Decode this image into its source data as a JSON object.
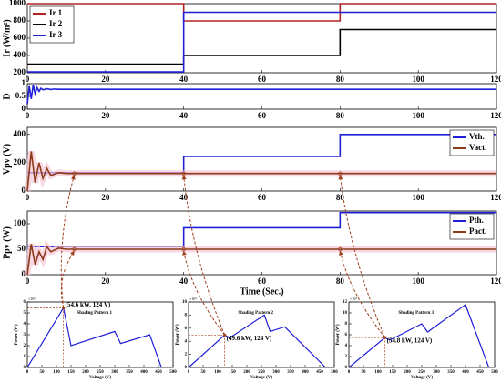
{
  "chart_data": [
    {
      "type": "line",
      "ylabel": "Ir (W/m²)",
      "xlim": [
        0,
        120
      ],
      "xticks": [
        0,
        20,
        40,
        60,
        80,
        100,
        120
      ],
      "ylim": [
        200,
        1000
      ],
      "yticks": [
        200,
        400,
        600,
        800,
        1000
      ],
      "legend": "upper left",
      "series": [
        {
          "name": "Ir 1",
          "color": "#b22222",
          "x": [
            0,
            40,
            40,
            80,
            80,
            120
          ],
          "values": [
            1000,
            1000,
            800,
            800,
            1000,
            1000
          ]
        },
        {
          "name": "Ir 2",
          "color": "#000000",
          "x": [
            0,
            40,
            40,
            80,
            80,
            120
          ],
          "values": [
            300,
            300,
            400,
            400,
            700,
            700
          ]
        },
        {
          "name": "Ir 3",
          "color": "#1f1fd6",
          "x": [
            0,
            40,
            40,
            80,
            80,
            120
          ],
          "values": [
            210,
            210,
            900,
            900,
            900,
            900
          ]
        }
      ]
    },
    {
      "type": "line",
      "ylabel": "D",
      "xlim": [
        0,
        120
      ],
      "xticks": [
        0,
        20,
        40,
        60,
        80,
        100,
        120
      ],
      "ylim": [
        0,
        1
      ],
      "yticks": [
        0,
        0.5,
        1
      ],
      "series": [
        {
          "color": "#1f1fd6",
          "x": [
            0,
            0.5,
            1,
            1.5,
            2,
            2.5,
            3,
            3.5,
            4,
            5,
            6,
            7,
            8,
            120
          ],
          "values": [
            0.2,
            0.9,
            0.4,
            0.95,
            0.6,
            0.85,
            0.7,
            0.82,
            0.76,
            0.8,
            0.77,
            0.79,
            0.78,
            0.78
          ]
        }
      ]
    },
    {
      "type": "line",
      "ylabel": "Vpv (V)",
      "xlim": [
        0,
        120
      ],
      "xticks": [
        0,
        20,
        40,
        60,
        80,
        100,
        120
      ],
      "ylim": [
        0,
        450
      ],
      "yticks": [
        0,
        200,
        400
      ],
      "legend": "upper right",
      "series": [
        {
          "name": "Vth.",
          "color": "#1f1fd6",
          "x": [
            0,
            40,
            40,
            80,
            80,
            120
          ],
          "values": [
            130,
            130,
            245,
            245,
            400,
            400
          ]
        },
        {
          "name": "Vact.",
          "color": "#8b3a1a",
          "x": [
            0,
            1,
            2,
            3,
            4,
            5,
            6,
            8,
            10,
            120
          ],
          "values": [
            0,
            280,
            60,
            200,
            90,
            160,
            110,
            130,
            124,
            124
          ]
        }
      ]
    },
    {
      "type": "line",
      "ylabel": "Ppv (W)",
      "xlabel": "Time (Sec.)",
      "xlim": [
        0,
        120
      ],
      "xticks": [
        0,
        20,
        40,
        60,
        80,
        100,
        120
      ],
      "ylim": [
        0,
        125
      ],
      "yticks": [
        0,
        50,
        100
      ],
      "legend": "upper right",
      "series": [
        {
          "name": "Pth.",
          "color": "#1f1fd6",
          "x": [
            0,
            40,
            40,
            80,
            80,
            120
          ],
          "values": [
            55,
            55,
            92,
            92,
            122,
            122
          ]
        },
        {
          "name": "Pact.",
          "color": "#8b3a1a",
          "x": [
            0,
            1,
            2,
            3,
            4,
            5,
            6,
            8,
            10,
            120
          ],
          "values": [
            0,
            60,
            20,
            45,
            30,
            55,
            45,
            52,
            50,
            50
          ]
        }
      ]
    },
    {
      "type": "line",
      "title": "Shading Pattern 1",
      "annotation": "(54.6 kW, 124 V)",
      "xlabel": "Voltage (V)",
      "ylabel": "Power (W)",
      "y_multiplier": "×10⁴",
      "xlim": [
        0,
        500
      ],
      "xticks": [
        0,
        50,
        100,
        150,
        200,
        250,
        300,
        350,
        400,
        450,
        500
      ],
      "ylim": [
        0,
        6
      ],
      "yticks": [
        0,
        1,
        2,
        3,
        4,
        5,
        6
      ],
      "series": [
        {
          "color": "#1f1fd6",
          "x": [
            0,
            124,
            150,
            300,
            320,
            420,
            460
          ],
          "values": [
            0,
            5.46,
            2.0,
            3.3,
            2.2,
            3.0,
            0
          ]
        }
      ]
    },
    {
      "type": "line",
      "title": "Shading Pattern 2",
      "annotation": "(49.6 kW, 124 V)",
      "xlabel": "Voltage (V)",
      "ylabel": "Power (W)",
      "y_multiplier": "×10⁴",
      "xlim": [
        0,
        500
      ],
      "xticks": [
        0,
        50,
        100,
        150,
        200,
        250,
        300,
        350,
        400,
        450,
        500
      ],
      "ylim": [
        0,
        10
      ],
      "yticks": [
        0,
        2,
        4,
        6,
        8,
        10
      ],
      "series": [
        {
          "color": "#1f1fd6",
          "x": [
            0,
            124,
            140,
            260,
            280,
            330,
            470
          ],
          "values": [
            0,
            4.96,
            4.5,
            8.0,
            5.5,
            6.2,
            0
          ]
        }
      ]
    },
    {
      "type": "line",
      "title": "Shading Pattern 3",
      "annotation": "(54.8 kW, 124 V)",
      "xlabel": "Voltage (V)",
      "ylabel": "Power (W)",
      "y_multiplier": "×10⁴",
      "xlim": [
        0,
        500
      ],
      "xticks": [
        0,
        50,
        100,
        150,
        200,
        250,
        300,
        350,
        400,
        450,
        500
      ],
      "ylim": [
        0,
        12
      ],
      "yticks": [
        0,
        2,
        4,
        6,
        8,
        10,
        12
      ],
      "series": [
        {
          "color": "#1f1fd6",
          "x": [
            0,
            124,
            140,
            250,
            270,
            400,
            480
          ],
          "values": [
            0,
            5.48,
            5.0,
            8.0,
            6.5,
            11.5,
            0
          ]
        }
      ]
    }
  ]
}
